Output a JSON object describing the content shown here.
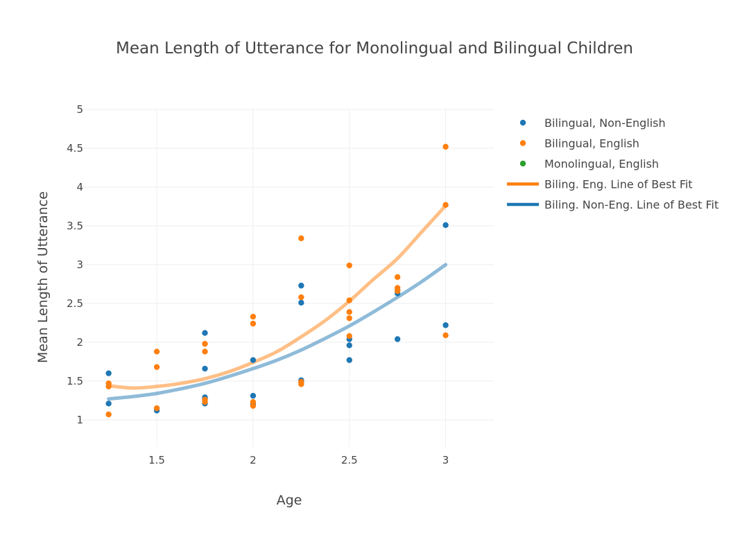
{
  "chart_data": {
    "type": "scatter",
    "title": "Mean Length of Utterance for Monolingual and Bilingual Children",
    "xlabel": "Age",
    "ylabel": "Mean Length of Utterance",
    "xlim": [
      1.1,
      3.25
    ],
    "ylim": [
      0.65,
      5.0
    ],
    "xticks": [
      1.5,
      2,
      2.5,
      3
    ],
    "xtick_labels": [
      "1.5",
      "2",
      "2.5",
      "3"
    ],
    "yticks": [
      1,
      1.5,
      2,
      2.5,
      3,
      3.5,
      4,
      4.5,
      5
    ],
    "ytick_labels": [
      "1",
      "1.5",
      "2",
      "2.5",
      "3",
      "3.5",
      "4",
      "4.5",
      "5"
    ],
    "grid": true,
    "legend_position": "right",
    "series": [
      {
        "name": "Bilingual, Non-English",
        "kind": "scatter",
        "color": "#1f77b4",
        "points": [
          [
            1.25,
            1.6
          ],
          [
            1.25,
            1.21
          ],
          [
            1.5,
            1.12
          ],
          [
            1.75,
            2.12
          ],
          [
            1.75,
            1.66
          ],
          [
            1.75,
            1.29
          ],
          [
            1.75,
            1.27
          ],
          [
            1.75,
            1.21
          ],
          [
            2.0,
            1.77
          ],
          [
            2.0,
            1.31
          ],
          [
            2.0,
            1.2
          ],
          [
            2.25,
            2.73
          ],
          [
            2.25,
            2.51
          ],
          [
            2.25,
            1.51
          ],
          [
            2.25,
            1.48
          ],
          [
            2.5,
            2.04
          ],
          [
            2.5,
            1.96
          ],
          [
            2.5,
            1.77
          ],
          [
            2.75,
            2.67
          ],
          [
            2.75,
            2.63
          ],
          [
            2.75,
            2.04
          ],
          [
            3.0,
            3.51
          ],
          [
            3.0,
            2.22
          ]
        ]
      },
      {
        "name": "Bilingual, English",
        "kind": "scatter",
        "color": "#ff7f0e",
        "points": [
          [
            1.25,
            1.47
          ],
          [
            1.25,
            1.43
          ],
          [
            1.25,
            1.07
          ],
          [
            1.5,
            1.88
          ],
          [
            1.5,
            1.68
          ],
          [
            1.5,
            1.15
          ],
          [
            1.75,
            1.98
          ],
          [
            1.75,
            1.88
          ],
          [
            1.75,
            1.26
          ],
          [
            1.75,
            1.23
          ],
          [
            2.0,
            2.33
          ],
          [
            2.0,
            2.24
          ],
          [
            2.0,
            1.23
          ],
          [
            2.0,
            1.18
          ],
          [
            2.25,
            3.34
          ],
          [
            2.25,
            2.58
          ],
          [
            2.25,
            1.49
          ],
          [
            2.25,
            1.46
          ],
          [
            2.5,
            2.99
          ],
          [
            2.5,
            2.54
          ],
          [
            2.5,
            2.39
          ],
          [
            2.5,
            2.31
          ],
          [
            2.5,
            2.08
          ],
          [
            2.75,
            2.84
          ],
          [
            2.75,
            2.7
          ],
          [
            2.75,
            2.66
          ],
          [
            3.0,
            4.52
          ],
          [
            3.0,
            3.77
          ],
          [
            3.0,
            2.09
          ]
        ]
      },
      {
        "name": "Monolingual, English",
        "kind": "scatter",
        "color": "#2ca02c",
        "points": []
      },
      {
        "name": "Biling. Eng. Line of Best Fit",
        "kind": "line",
        "color": "#ff7f0e",
        "points": [
          [
            1.25,
            1.44
          ],
          [
            1.375,
            1.41
          ],
          [
            1.5,
            1.43
          ],
          [
            1.625,
            1.47
          ],
          [
            1.75,
            1.53
          ],
          [
            1.875,
            1.62
          ],
          [
            2.0,
            1.74
          ],
          [
            2.125,
            1.88
          ],
          [
            2.25,
            2.07
          ],
          [
            2.375,
            2.28
          ],
          [
            2.5,
            2.53
          ],
          [
            2.625,
            2.81
          ],
          [
            2.75,
            3.08
          ],
          [
            2.875,
            3.42
          ],
          [
            3.0,
            3.76
          ]
        ]
      },
      {
        "name": "Biling. Non-Eng. Line of Best Fit",
        "kind": "line",
        "color": "#1f77b4",
        "points": [
          [
            1.25,
            1.27
          ],
          [
            1.375,
            1.3
          ],
          [
            1.5,
            1.34
          ],
          [
            1.625,
            1.4
          ],
          [
            1.75,
            1.47
          ],
          [
            1.875,
            1.56
          ],
          [
            2.0,
            1.66
          ],
          [
            2.125,
            1.77
          ],
          [
            2.25,
            1.9
          ],
          [
            2.375,
            2.05
          ],
          [
            2.5,
            2.21
          ],
          [
            2.625,
            2.39
          ],
          [
            2.75,
            2.58
          ],
          [
            2.875,
            2.78
          ],
          [
            3.0,
            3.0
          ]
        ]
      }
    ]
  }
}
